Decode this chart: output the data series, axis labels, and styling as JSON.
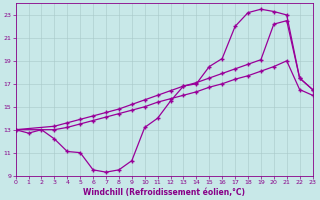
{
  "title": "",
  "xlabel": "Windchill (Refroidissement éolien,°C)",
  "bg_color": "#c8e8e8",
  "line_color": "#990099",
  "grid_color": "#b0c8c8",
  "xlim": [
    0,
    23
  ],
  "ylim": [
    9,
    24
  ],
  "yticks": [
    9,
    11,
    13,
    15,
    17,
    19,
    21,
    23
  ],
  "xticks": [
    0,
    1,
    2,
    3,
    4,
    5,
    6,
    7,
    8,
    9,
    10,
    11,
    12,
    13,
    14,
    15,
    16,
    17,
    18,
    19,
    20,
    21,
    22,
    23
  ],
  "line1_x": [
    0,
    1,
    2,
    3,
    4,
    5,
    6,
    7,
    8,
    9,
    10,
    11,
    12,
    13,
    14,
    15,
    16,
    17,
    18,
    19,
    20,
    21,
    22,
    23
  ],
  "line1_y": [
    13,
    12.7,
    13.0,
    12.2,
    11.1,
    11.0,
    9.5,
    9.3,
    9.5,
    10.3,
    13.2,
    14.0,
    15.5,
    16.8,
    17.0,
    18.5,
    19.2,
    22.0,
    23.2,
    23.5,
    23.3,
    23.0,
    17.5,
    16.5
  ],
  "line2_x": [
    0,
    3,
    4,
    5,
    6,
    7,
    8,
    9,
    10,
    11,
    12,
    13,
    14,
    15,
    16,
    17,
    18,
    19,
    20,
    21,
    22,
    23
  ],
  "line2_y": [
    13,
    13.3,
    13.6,
    13.9,
    14.2,
    14.5,
    14.8,
    15.2,
    15.6,
    16.0,
    16.4,
    16.8,
    17.1,
    17.5,
    17.9,
    18.3,
    18.7,
    19.1,
    22.2,
    22.5,
    17.5,
    16.5
  ],
  "line3_x": [
    0,
    3,
    4,
    5,
    6,
    7,
    8,
    9,
    10,
    11,
    12,
    13,
    14,
    15,
    16,
    17,
    18,
    19,
    20,
    21,
    22,
    23
  ],
  "line3_y": [
    13,
    13.0,
    13.2,
    13.5,
    13.8,
    14.1,
    14.4,
    14.7,
    15.0,
    15.4,
    15.7,
    16.0,
    16.3,
    16.7,
    17.0,
    17.4,
    17.7,
    18.1,
    18.5,
    19.0,
    16.5,
    16.0
  ]
}
